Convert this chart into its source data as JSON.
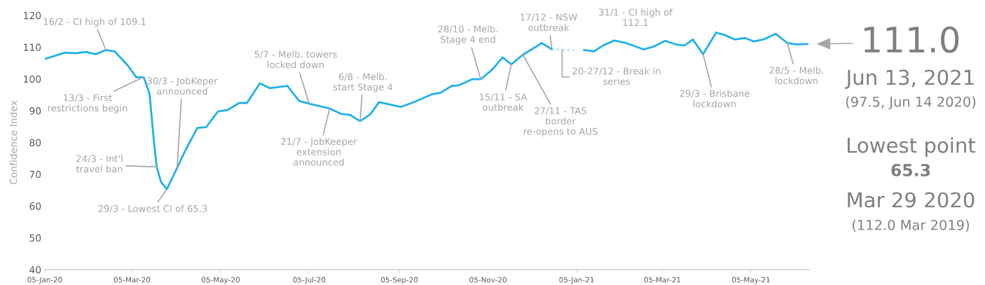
{
  "chart_data": {
    "type": "line",
    "ylabel": "Confidence Index",
    "xlim": [
      "2020-01-05",
      "2021-06-14"
    ],
    "xticks": [
      {
        "value": "2020-01-05",
        "label": "05-Jan-20"
      },
      {
        "value": "2020-03-05",
        "label": "05-Mar-20"
      },
      {
        "value": "2020-05-05",
        "label": "05-May-20"
      },
      {
        "value": "2020-07-05",
        "label": "05-Jul-20"
      },
      {
        "value": "2020-09-05",
        "label": "05-Sep-20"
      },
      {
        "value": "2020-11-05",
        "label": "05-Nov-20"
      },
      {
        "value": "2021-01-05",
        "label": "05-Jan-21"
      },
      {
        "value": "2021-03-05",
        "label": "05-Mar-21"
      },
      {
        "value": "2021-05-05",
        "label": "05-May-21"
      }
    ],
    "ylim": [
      40,
      120
    ],
    "yticks": [
      40,
      50,
      60,
      70,
      80,
      90,
      100,
      110,
      120
    ],
    "grid": false,
    "legend": false,
    "marker": "none",
    "series": [
      {
        "color": "#1fb0e8",
        "line_style": "solid",
        "x": [
          "2020-01-05",
          "2020-01-19",
          "2020-01-27",
          "2020-02-02",
          "2020-02-09",
          "2020-02-16",
          "2020-02-22",
          "2020-03-02",
          "2020-03-08",
          "2020-03-13",
          "2020-03-17",
          "2020-03-20",
          "2020-03-22",
          "2020-03-25",
          "2020-03-29",
          "2020-04-05",
          "2020-04-11",
          "2020-04-19",
          "2020-04-25",
          "2020-05-03",
          "2020-05-10",
          "2020-05-18",
          "2020-05-23",
          "2020-06-01",
          "2020-06-08",
          "2020-06-20",
          "2020-06-28",
          "2020-07-05",
          "2020-07-19",
          "2020-07-27",
          "2020-08-02",
          "2020-08-09",
          "2020-08-16",
          "2020-08-22",
          "2020-09-06",
          "2020-09-16",
          "2020-09-27",
          "2020-10-03",
          "2020-10-11",
          "2020-10-16",
          "2020-10-25",
          "2020-10-31",
          "2020-11-08",
          "2020-11-15",
          "2020-11-21",
          "2020-11-29",
          "2020-12-05",
          "2020-12-12",
          "2020-12-19",
          "2021-01-03",
          "2021-01-10",
          "2021-01-17",
          "2021-01-23",
          "2021-01-31",
          "2021-02-08",
          "2021-02-20",
          "2021-02-27",
          "2021-03-07",
          "2021-03-14",
          "2021-03-20",
          "2021-03-26",
          "2021-04-02",
          "2021-04-11",
          "2021-04-17",
          "2021-04-24",
          "2021-05-01",
          "2021-05-07",
          "2021-05-14",
          "2021-05-22",
          "2021-05-30",
          "2021-06-05",
          "2021-06-13"
        ],
        "values": [
          106.3,
          108.3,
          108.1,
          108.5,
          107.8,
          109.1,
          108.7,
          104.3,
          100.5,
          100.6,
          95.5,
          80.8,
          72.3,
          67.5,
          65.3,
          72.0,
          77.8,
          84.6,
          84.8,
          89.7,
          90.3,
          92.5,
          92.4,
          98.6,
          97.1,
          97.8,
          93.1,
          92.2,
          90.7,
          89.0,
          88.7,
          86.7,
          88.9,
          92.7,
          91.2,
          92.9,
          95.1,
          95.6,
          97.8,
          98.0,
          99.9,
          99.9,
          103.0,
          106.8,
          104.6,
          107.6,
          109.3,
          111.3,
          109.3,
          null,
          109.1,
          108.7,
          110.5,
          112.1,
          111.3,
          109.3,
          110.2,
          112.0,
          110.9,
          110.5,
          112.4,
          107.8,
          114.6,
          113.8,
          112.4,
          112.9,
          111.8,
          112.5,
          114.2,
          111.3,
          110.9,
          111.0
        ]
      },
      {
        "color": "#9fdcf5",
        "line_style": "dotted",
        "x": [
          "2020-12-19",
          "2021-01-03"
        ],
        "values": [
          109.3,
          109.1
        ]
      }
    ],
    "annotations": [
      {
        "text": "16/2 - CI high of 109.1",
        "x": "2020-02-16",
        "y": 109.1
      },
      {
        "text": "13/3 - First\nrestrictions begin",
        "x": "2020-03-13",
        "y": 100.6
      },
      {
        "text": "30/3 - JobKeper\nannounced",
        "x": "2020-04-05",
        "y": 72.0
      },
      {
        "text": "24/3 - Int'l\ntravel ban",
        "x": "2020-03-22",
        "y": 72.3
      },
      {
        "text": "29/3 - Lowest CI of 65.3",
        "x": "2020-03-29",
        "y": 65.3
      },
      {
        "text": "5/7 - Melb. towers\nlocked down",
        "x": "2020-07-05",
        "y": 92.2
      },
      {
        "text": "21/7 - JobKeeper\nextension\nannounced",
        "x": "2020-07-19",
        "y": 90.7
      },
      {
        "text": "6/8 - Melb.\nstart Stage 4",
        "x": "2020-08-09",
        "y": 86.7
      },
      {
        "text": "28/10 - Melb.\nStage 4 end",
        "x": "2020-10-31",
        "y": 99.9
      },
      {
        "text": "15/11 - SA\noutbreak",
        "x": "2020-11-21",
        "y": 104.6
      },
      {
        "text": "27/11 - TAS\nborder\nre-opens to AUS",
        "x": "2020-11-29",
        "y": 107.6
      },
      {
        "text": "17/12 - NSW\noutbreak",
        "x": "2020-12-19",
        "y": 109.3
      },
      {
        "text": "20-27/12 - Break in\nseries",
        "x": "2020-12-26",
        "y": 109.2
      },
      {
        "text": "31/1 - CI high of\n112.1",
        "x": "2021-01-31",
        "y": 112.1
      },
      {
        "text": "29/3 - Brisbane\nlockdown",
        "x": "2021-04-02",
        "y": 107.8
      },
      {
        "text": "28/5 - Melb.\nlockdown",
        "x": "2021-05-30",
        "y": 111.3
      },
      {
        "text": "111.0",
        "x": "2021-06-13",
        "y": 111.0
      },
      "Jun 13, 2021",
      "(97.5, Jun 14 2020)",
      "Lowest point",
      "65.3",
      "Mar 29 2020",
      "(112.0 Mar 2019)"
    ]
  }
}
